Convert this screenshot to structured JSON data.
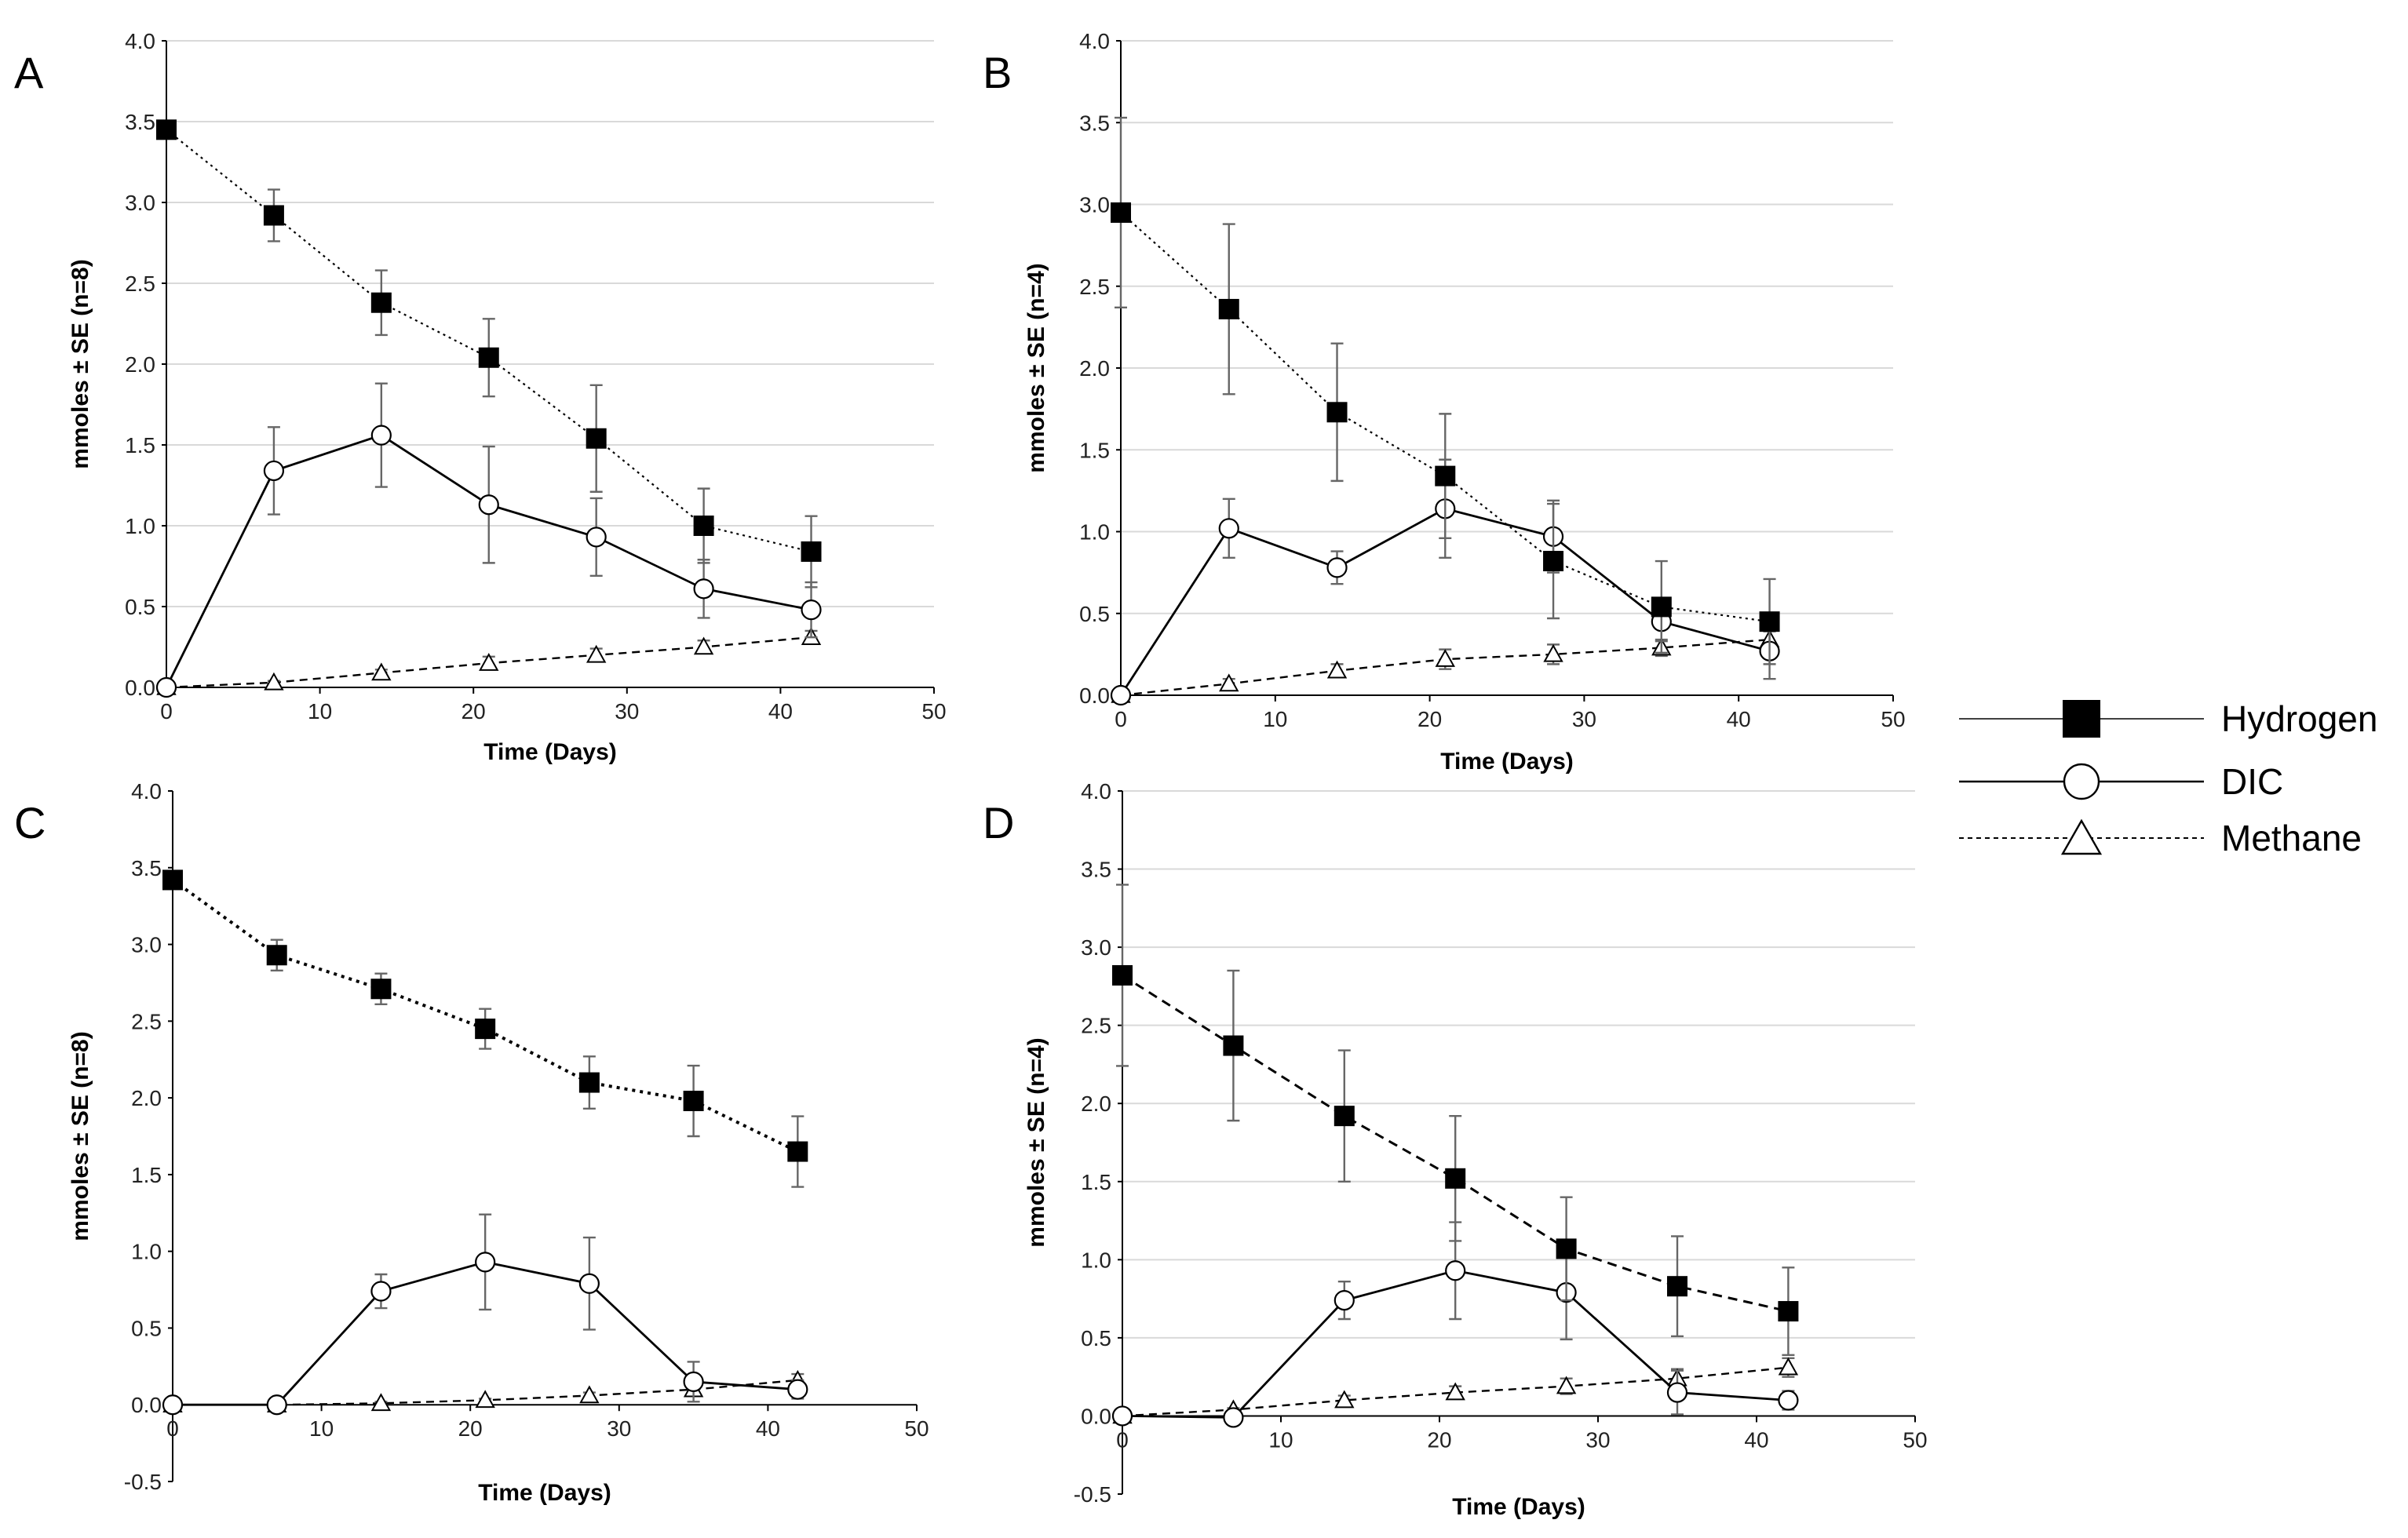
{
  "chart_data": [
    {
      "type": "line",
      "panel": "A",
      "xlabel": "Time (Days)",
      "ylabel": "mmoles ± SE (n=8)",
      "xlim": [
        0,
        50
      ],
      "ylim": [
        0,
        4.0
      ],
      "xticks": [
        "0",
        "10",
        "20",
        "30",
        "40",
        "50"
      ],
      "yticks": [
        "0.0",
        "0.5",
        "1.0",
        "1.5",
        "2.0",
        "2.5",
        "3.0",
        "3.5",
        "4.0"
      ],
      "grid": true,
      "x": [
        0,
        7,
        14,
        21,
        28,
        35,
        42
      ],
      "series": [
        {
          "name": "Hydrogen",
          "values": [
            3.45,
            2.92,
            2.38,
            2.04,
            1.54,
            1.0,
            0.84
          ],
          "errors": [
            0.0,
            0.16,
            0.2,
            0.24,
            0.33,
            0.23,
            0.22
          ]
        },
        {
          "name": "DIC",
          "values": [
            0.0,
            1.34,
            1.56,
            1.13,
            0.93,
            0.61,
            0.48
          ],
          "errors": [
            0.0,
            0.27,
            0.32,
            0.36,
            0.24,
            0.18,
            0.17
          ]
        },
        {
          "name": "Methane",
          "values": [
            0.0,
            0.03,
            0.09,
            0.15,
            0.2,
            0.25,
            0.31
          ],
          "errors": [
            0.0,
            0.01,
            0.02,
            0.04,
            0.04,
            0.04,
            0.04
          ]
        }
      ]
    },
    {
      "type": "line",
      "panel": "B",
      "xlabel": "Time (Days)",
      "ylabel": "mmoles ± SE (n=4)",
      "xlim": [
        0,
        50
      ],
      "ylim": [
        0,
        4.0
      ],
      "xticks": [
        "0",
        "10",
        "20",
        "30",
        "40",
        "50"
      ],
      "yticks": [
        "0.0",
        "0.5",
        "1.0",
        "1.5",
        "2.0",
        "2.5",
        "3.0",
        "3.5",
        "4.0"
      ],
      "grid": true,
      "x": [
        0,
        7,
        14,
        21,
        28,
        35,
        42
      ],
      "series": [
        {
          "name": "Hydrogen",
          "values": [
            2.95,
            2.36,
            1.73,
            1.34,
            0.82,
            0.54,
            0.45
          ],
          "errors": [
            0.58,
            0.52,
            0.42,
            0.38,
            0.35,
            0.28,
            0.26
          ]
        },
        {
          "name": "DIC",
          "values": [
            0.0,
            1.02,
            0.78,
            1.14,
            0.97,
            0.45,
            0.27
          ],
          "errors": [
            0.0,
            0.18,
            0.1,
            0.3,
            0.22,
            0.12,
            0.17
          ]
        },
        {
          "name": "Methane",
          "values": [
            0.0,
            0.07,
            0.15,
            0.22,
            0.25,
            0.29,
            0.34
          ],
          "errors": [
            0.0,
            0.03,
            0.04,
            0.06,
            0.06,
            0.05,
            0.05
          ]
        }
      ]
    },
    {
      "type": "line",
      "panel": "C",
      "xlabel": "Time (Days)",
      "ylabel": "mmoles ± SE (n=8)",
      "xlim": [
        0,
        50
      ],
      "ylim": [
        -0.5,
        4.0
      ],
      "xticks": [
        "0",
        "10",
        "20",
        "30",
        "40",
        "50"
      ],
      "yticks": [
        "-0.5",
        "0.0",
        "0.5",
        "1.0",
        "1.5",
        "2.0",
        "2.5",
        "3.0",
        "3.5",
        "4.0"
      ],
      "grid": false,
      "x": [
        0,
        7,
        14,
        21,
        28,
        35,
        42
      ],
      "series": [
        {
          "name": "Hydrogen",
          "values": [
            3.42,
            2.93,
            2.71,
            2.45,
            2.1,
            1.98,
            1.65
          ],
          "errors": [
            0.0,
            0.1,
            0.1,
            0.13,
            0.17,
            0.23,
            0.23
          ]
        },
        {
          "name": "DIC",
          "values": [
            0.0,
            0.0,
            0.74,
            0.93,
            0.79,
            0.15,
            0.1
          ],
          "errors": [
            0.0,
            0.0,
            0.11,
            0.31,
            0.3,
            0.13,
            0.06
          ]
        },
        {
          "name": "Methane",
          "values": [
            0.0,
            0.0,
            0.01,
            0.03,
            0.06,
            0.1,
            0.16
          ],
          "errors": [
            0.0,
            0.0,
            0.01,
            0.01,
            0.02,
            0.03,
            0.04
          ]
        }
      ]
    },
    {
      "type": "line",
      "panel": "D",
      "xlabel": "Time (Days)",
      "ylabel": "mmoles ± SE (n=4)",
      "xlim": [
        0,
        50
      ],
      "ylim": [
        -0.5,
        4.0
      ],
      "xticks": [
        "0",
        "10",
        "20",
        "30",
        "40",
        "50"
      ],
      "yticks": [
        "-0.5",
        "0.0",
        "0.5",
        "1.0",
        "1.5",
        "2.0",
        "2.5",
        "3.0",
        "3.5",
        "4.0"
      ],
      "grid": true,
      "x": [
        0,
        7,
        14,
        21,
        28,
        35,
        42
      ],
      "series": [
        {
          "name": "Hydrogen",
          "values": [
            2.82,
            2.37,
            1.92,
            1.52,
            1.07,
            0.83,
            0.67
          ],
          "errors": [
            0.58,
            0.48,
            0.42,
            0.4,
            0.33,
            0.32,
            0.28
          ]
        },
        {
          "name": "DIC",
          "values": [
            0.0,
            -0.01,
            0.74,
            0.93,
            0.79,
            0.15,
            0.1
          ],
          "errors": [
            0.0,
            0.0,
            0.12,
            0.31,
            0.3,
            0.14,
            0.06
          ]
        },
        {
          "name": "Methane",
          "values": [
            0.0,
            0.04,
            0.1,
            0.15,
            0.19,
            0.24,
            0.31
          ],
          "errors": [
            0.0,
            0.01,
            0.03,
            0.04,
            0.05,
            0.06,
            0.06
          ]
        }
      ]
    }
  ],
  "legend": {
    "entries": [
      {
        "name": "Hydrogen",
        "marker": "square-filled",
        "line": "solid-thin"
      },
      {
        "name": "DIC",
        "marker": "circle-open",
        "line": "solid"
      },
      {
        "name": "Methane",
        "marker": "triangle-open",
        "line": "dashed"
      }
    ]
  },
  "styles": {
    "line_color": "#000000",
    "grid_color": "#d9d9d9",
    "error_color": "#666666",
    "marker_fill": "#000000",
    "open_fill": "#ffffff"
  }
}
